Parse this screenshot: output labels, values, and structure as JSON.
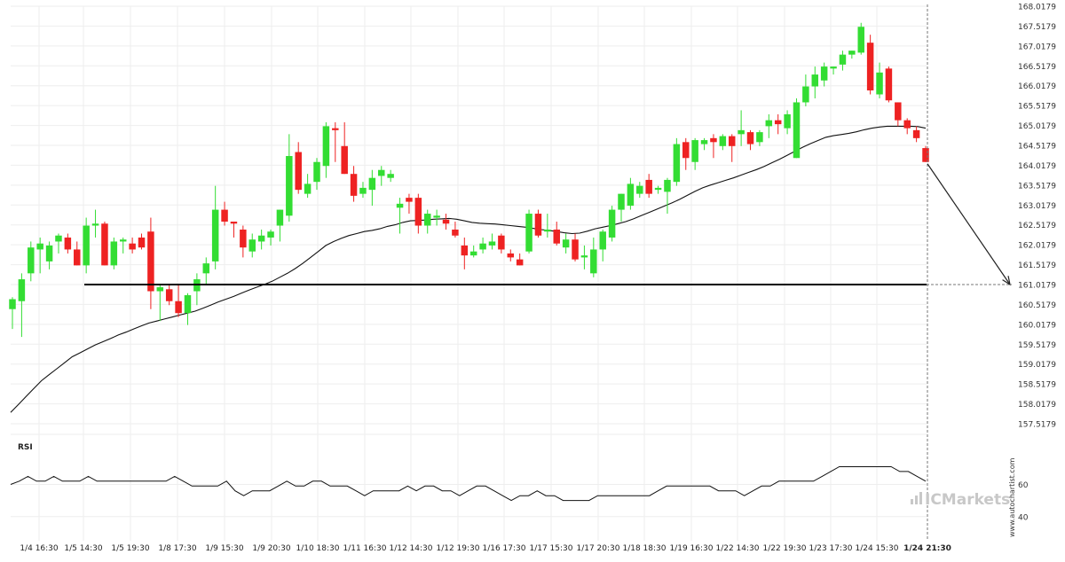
{
  "chart_data": {
    "type": "candlestick",
    "y_ticks": [
      "168.0179",
      "167.5179",
      "167.0179",
      "166.5179",
      "166.0179",
      "165.5179",
      "165.0179",
      "164.5179",
      "164.0179",
      "163.5179",
      "163.0179",
      "162.5179",
      "162.0179",
      "161.5179",
      "161.0179",
      "160.5179",
      "160.0179",
      "159.5179",
      "159.0179",
      "158.5179",
      "158.0179",
      "157.5179"
    ],
    "ylim": [
      157.3,
      168.2
    ],
    "x_labels": [
      "1/4 16:30",
      "1/5 14:30",
      "1/5 19:30",
      "1/8 17:30",
      "1/9 15:30",
      "1/9 20:30",
      "1/10 18:30",
      "1/11 16:30",
      "1/12 14:30",
      "1/12 19:30",
      "1/16 17:30",
      "1/17 15:30",
      "1/17 20:30",
      "1/18 18:30",
      "1/19 16:30",
      "1/22 14:30",
      "1/22 19:30",
      "1/23 17:30",
      "1/24 15:30",
      "1/24 21:30"
    ],
    "last_x_label": "1/24 21:30",
    "colors": {
      "up": "#33dd33",
      "down": "#ee2222",
      "line": "#000000",
      "grid": "#eeeeee",
      "axis_text": "#333333"
    },
    "candles": [
      {
        "o": 160.4,
        "h": 160.7,
        "l": 159.9,
        "c": 160.65
      },
      {
        "o": 160.6,
        "h": 161.3,
        "l": 159.7,
        "c": 161.15
      },
      {
        "o": 161.3,
        "h": 162.1,
        "l": 161.1,
        "c": 161.95
      },
      {
        "o": 161.9,
        "h": 162.2,
        "l": 161.3,
        "c": 162.05
      },
      {
        "o": 161.6,
        "h": 162.1,
        "l": 161.4,
        "c": 162.0
      },
      {
        "o": 162.1,
        "h": 162.3,
        "l": 161.8,
        "c": 162.25
      },
      {
        "o": 162.2,
        "h": 162.3,
        "l": 161.8,
        "c": 161.9
      },
      {
        "o": 161.9,
        "h": 162.1,
        "l": 161.5,
        "c": 161.5
      },
      {
        "o": 161.5,
        "h": 162.7,
        "l": 161.3,
        "c": 162.5
      },
      {
        "o": 162.5,
        "h": 162.9,
        "l": 162.2,
        "c": 162.55
      },
      {
        "o": 162.55,
        "h": 162.6,
        "l": 161.5,
        "c": 161.5
      },
      {
        "o": 161.5,
        "h": 162.2,
        "l": 161.4,
        "c": 162.1
      },
      {
        "o": 162.1,
        "h": 162.2,
        "l": 161.8,
        "c": 162.15
      },
      {
        "o": 162.05,
        "h": 162.2,
        "l": 161.8,
        "c": 161.9
      },
      {
        "o": 162.2,
        "h": 162.3,
        "l": 161.9,
        "c": 161.95
      },
      {
        "o": 162.35,
        "h": 162.7,
        "l": 160.4,
        "c": 160.85
      },
      {
        "o": 160.85,
        "h": 161.0,
        "l": 160.1,
        "c": 160.95
      },
      {
        "o": 160.9,
        "h": 161.0,
        "l": 160.5,
        "c": 160.6
      },
      {
        "o": 160.6,
        "h": 161.0,
        "l": 160.2,
        "c": 160.3
      },
      {
        "o": 160.3,
        "h": 160.8,
        "l": 160.0,
        "c": 160.75
      },
      {
        "o": 160.85,
        "h": 161.3,
        "l": 160.5,
        "c": 161.15
      },
      {
        "o": 161.3,
        "h": 161.7,
        "l": 161.0,
        "c": 161.55
      },
      {
        "o": 161.6,
        "h": 163.5,
        "l": 161.4,
        "c": 162.9
      },
      {
        "o": 162.9,
        "h": 163.1,
        "l": 162.5,
        "c": 162.6
      },
      {
        "o": 162.6,
        "h": 162.6,
        "l": 162.2,
        "c": 162.55
      },
      {
        "o": 162.4,
        "h": 162.5,
        "l": 161.7,
        "c": 161.95
      },
      {
        "o": 161.85,
        "h": 162.3,
        "l": 161.7,
        "c": 162.15
      },
      {
        "o": 162.1,
        "h": 162.4,
        "l": 161.9,
        "c": 162.25
      },
      {
        "o": 162.2,
        "h": 162.4,
        "l": 162.0,
        "c": 162.35
      },
      {
        "o": 162.5,
        "h": 162.9,
        "l": 162.1,
        "c": 162.9
      },
      {
        "o": 162.75,
        "h": 164.8,
        "l": 162.6,
        "c": 164.25
      },
      {
        "o": 164.35,
        "h": 164.6,
        "l": 163.3,
        "c": 163.4
      },
      {
        "o": 163.3,
        "h": 163.8,
        "l": 163.2,
        "c": 163.55
      },
      {
        "o": 163.6,
        "h": 164.2,
        "l": 163.4,
        "c": 164.1
      },
      {
        "o": 164.0,
        "h": 165.1,
        "l": 163.7,
        "c": 165.0
      },
      {
        "o": 164.95,
        "h": 165.1,
        "l": 164.1,
        "c": 164.9
      },
      {
        "o": 164.5,
        "h": 165.1,
        "l": 163.8,
        "c": 163.8
      },
      {
        "o": 163.8,
        "h": 164.0,
        "l": 163.1,
        "c": 163.25
      },
      {
        "o": 163.3,
        "h": 163.6,
        "l": 163.2,
        "c": 163.45
      },
      {
        "o": 163.4,
        "h": 163.9,
        "l": 163.0,
        "c": 163.7
      },
      {
        "o": 163.75,
        "h": 164.0,
        "l": 163.5,
        "c": 163.9
      },
      {
        "o": 163.7,
        "h": 163.9,
        "l": 163.6,
        "c": 163.8
      },
      {
        "o": 162.95,
        "h": 163.2,
        "l": 162.3,
        "c": 163.05
      },
      {
        "o": 163.2,
        "h": 163.3,
        "l": 162.8,
        "c": 163.1
      },
      {
        "o": 163.2,
        "h": 163.3,
        "l": 162.3,
        "c": 162.5
      },
      {
        "o": 162.5,
        "h": 162.9,
        "l": 162.3,
        "c": 162.8
      },
      {
        "o": 162.7,
        "h": 162.9,
        "l": 162.5,
        "c": 162.75
      },
      {
        "o": 162.65,
        "h": 162.8,
        "l": 162.4,
        "c": 162.55
      },
      {
        "o": 162.4,
        "h": 162.6,
        "l": 162.2,
        "c": 162.25
      },
      {
        "o": 162.0,
        "h": 162.2,
        "l": 161.4,
        "c": 161.75
      },
      {
        "o": 161.75,
        "h": 162.0,
        "l": 161.7,
        "c": 161.85
      },
      {
        "o": 161.9,
        "h": 162.2,
        "l": 161.8,
        "c": 162.05
      },
      {
        "o": 162.0,
        "h": 162.3,
        "l": 161.9,
        "c": 162.1
      },
      {
        "o": 162.25,
        "h": 162.3,
        "l": 161.8,
        "c": 161.9
      },
      {
        "o": 161.8,
        "h": 161.9,
        "l": 161.6,
        "c": 161.7
      },
      {
        "o": 161.65,
        "h": 161.8,
        "l": 161.5,
        "c": 161.5
      },
      {
        "o": 161.85,
        "h": 162.9,
        "l": 161.8,
        "c": 162.8
      },
      {
        "o": 162.8,
        "h": 162.9,
        "l": 162.2,
        "c": 162.25
      },
      {
        "o": 162.35,
        "h": 162.8,
        "l": 162.2,
        "c": 162.4
      },
      {
        "o": 162.4,
        "h": 162.6,
        "l": 162.0,
        "c": 162.05
      },
      {
        "o": 161.95,
        "h": 162.3,
        "l": 161.8,
        "c": 162.15
      },
      {
        "o": 162.15,
        "h": 162.3,
        "l": 161.6,
        "c": 161.65
      },
      {
        "o": 161.7,
        "h": 162.0,
        "l": 161.4,
        "c": 161.75
      },
      {
        "o": 161.3,
        "h": 162.2,
        "l": 161.2,
        "c": 161.9
      },
      {
        "o": 161.9,
        "h": 162.4,
        "l": 161.6,
        "c": 162.35
      },
      {
        "o": 162.2,
        "h": 163.0,
        "l": 162.1,
        "c": 162.9
      },
      {
        "o": 162.9,
        "h": 163.3,
        "l": 162.6,
        "c": 163.3
      },
      {
        "o": 163.0,
        "h": 163.7,
        "l": 162.9,
        "c": 163.55
      },
      {
        "o": 163.3,
        "h": 163.6,
        "l": 163.2,
        "c": 163.5
      },
      {
        "o": 163.65,
        "h": 163.8,
        "l": 163.2,
        "c": 163.3
      },
      {
        "o": 163.4,
        "h": 163.5,
        "l": 163.3,
        "c": 163.45
      },
      {
        "o": 163.35,
        "h": 163.7,
        "l": 162.8,
        "c": 163.65
      },
      {
        "o": 163.6,
        "h": 164.7,
        "l": 163.5,
        "c": 164.55
      },
      {
        "o": 164.6,
        "h": 164.7,
        "l": 163.9,
        "c": 164.2
      },
      {
        "o": 164.1,
        "h": 164.7,
        "l": 163.9,
        "c": 164.65
      },
      {
        "o": 164.55,
        "h": 164.7,
        "l": 164.4,
        "c": 164.65
      },
      {
        "o": 164.7,
        "h": 164.8,
        "l": 164.2,
        "c": 164.6
      },
      {
        "o": 164.5,
        "h": 164.8,
        "l": 164.4,
        "c": 164.75
      },
      {
        "o": 164.75,
        "h": 164.8,
        "l": 164.1,
        "c": 164.5
      },
      {
        "o": 164.8,
        "h": 165.4,
        "l": 164.5,
        "c": 164.9
      },
      {
        "o": 164.85,
        "h": 164.9,
        "l": 164.4,
        "c": 164.55
      },
      {
        "o": 164.6,
        "h": 164.9,
        "l": 164.5,
        "c": 164.85
      },
      {
        "o": 165.0,
        "h": 165.3,
        "l": 164.7,
        "c": 165.15
      },
      {
        "o": 165.15,
        "h": 165.3,
        "l": 164.8,
        "c": 165.05
      },
      {
        "o": 164.95,
        "h": 165.4,
        "l": 164.8,
        "c": 165.3
      },
      {
        "o": 164.2,
        "h": 165.7,
        "l": 164.2,
        "c": 165.6
      },
      {
        "o": 165.6,
        "h": 166.3,
        "l": 165.5,
        "c": 166.0
      },
      {
        "o": 166.0,
        "h": 166.5,
        "l": 165.7,
        "c": 166.3
      },
      {
        "o": 166.15,
        "h": 166.6,
        "l": 166.0,
        "c": 166.5
      },
      {
        "o": 166.45,
        "h": 166.5,
        "l": 166.3,
        "c": 166.5
      },
      {
        "o": 166.55,
        "h": 166.9,
        "l": 166.4,
        "c": 166.8
      },
      {
        "o": 166.8,
        "h": 166.9,
        "l": 166.7,
        "c": 166.9
      },
      {
        "o": 166.85,
        "h": 167.6,
        "l": 166.8,
        "c": 167.5
      },
      {
        "o": 167.1,
        "h": 167.3,
        "l": 165.8,
        "c": 165.9
      },
      {
        "o": 165.8,
        "h": 166.6,
        "l": 165.7,
        "c": 166.35
      },
      {
        "o": 166.45,
        "h": 166.5,
        "l": 165.6,
        "c": 165.65
      },
      {
        "o": 165.6,
        "h": 165.6,
        "l": 165.0,
        "c": 165.15
      },
      {
        "o": 165.15,
        "h": 165.2,
        "l": 164.8,
        "c": 164.95
      },
      {
        "o": 164.9,
        "h": 165.0,
        "l": 164.6,
        "c": 164.7
      },
      {
        "o": 164.45,
        "h": 164.5,
        "l": 164.1,
        "c": 164.1
      }
    ],
    "ma": [
      157.8,
      158.0,
      158.2,
      158.4,
      158.6,
      158.75,
      158.9,
      159.05,
      159.2,
      159.3,
      159.4,
      159.5,
      159.58,
      159.66,
      159.75,
      159.82,
      159.9,
      159.98,
      160.05,
      160.1,
      160.15,
      160.2,
      160.25,
      160.3,
      160.35,
      160.42,
      160.5,
      160.58,
      160.65,
      160.72,
      160.8,
      160.88,
      160.95,
      161.02,
      161.1,
      161.2,
      161.3,
      161.42,
      161.55,
      161.7,
      161.85,
      162.0,
      162.1,
      162.18,
      162.25,
      162.3,
      162.35,
      162.38,
      162.42,
      162.48,
      162.52,
      162.58,
      162.62,
      162.63,
      162.64,
      162.66,
      162.67,
      162.68,
      162.66,
      162.62,
      162.58,
      162.56,
      162.55,
      162.54,
      162.52,
      162.5,
      162.48,
      162.46,
      162.43,
      162.4,
      162.38,
      162.35,
      162.32,
      162.3,
      162.31,
      162.36,
      162.42,
      162.46,
      162.5,
      162.55,
      162.6,
      162.67,
      162.75,
      162.83,
      162.91,
      162.99,
      163.07,
      163.16,
      163.26,
      163.36,
      163.45,
      163.52,
      163.58,
      163.64,
      163.7,
      163.77,
      163.84,
      163.91,
      163.99,
      164.08,
      164.17,
      164.27,
      164.37,
      164.47,
      164.56,
      164.64,
      164.72,
      164.76,
      164.79,
      164.82,
      164.86,
      164.91,
      164.95,
      164.98,
      165.0,
      165.0,
      165.0,
      165.0,
      164.99,
      164.95
    ],
    "support_level": 161.0179,
    "projection_end": 161.0179,
    "rsi": {
      "label": "RSI",
      "ticks": [
        "60",
        "40"
      ],
      "ylim": [
        25,
        90
      ],
      "values": [
        60,
        62,
        65,
        62,
        62,
        65,
        62,
        62,
        62,
        65,
        62,
        62,
        62,
        62,
        62,
        62,
        62,
        62,
        62,
        65,
        62,
        59,
        59,
        59,
        59,
        62,
        56,
        53,
        56,
        56,
        56,
        59,
        62,
        59,
        59,
        62,
        62,
        59,
        59,
        59,
        56,
        53,
        56,
        56,
        56,
        56,
        59,
        56,
        59,
        59,
        56,
        56,
        53,
        56,
        59,
        59,
        56,
        53,
        50,
        53,
        53,
        56,
        53,
        53,
        50,
        50,
        50,
        50,
        53,
        53,
        53,
        53,
        53,
        53,
        53,
        56,
        59,
        59,
        59,
        59,
        59,
        59,
        56,
        56,
        56,
        53,
        56,
        59,
        59,
        62,
        62,
        62,
        62,
        62,
        65,
        68,
        71,
        71,
        71,
        71,
        71,
        71,
        71,
        68,
        68,
        65,
        62
      ]
    },
    "watermark": "ICMarkets",
    "side_text": "www.autochartist.com"
  }
}
